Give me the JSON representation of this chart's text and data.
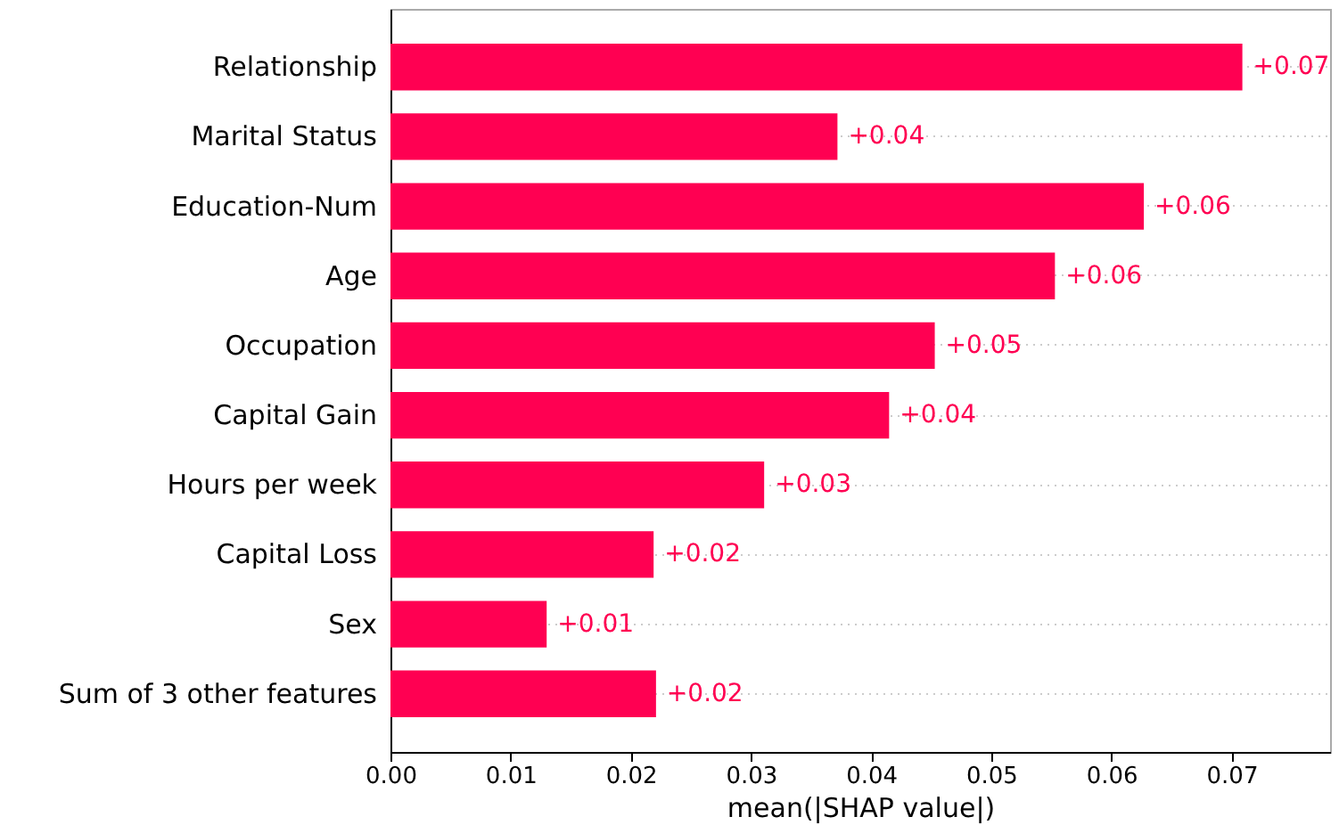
{
  "chart_data": {
    "type": "bar",
    "orientation": "horizontal",
    "xlabel": "mean(|SHAP value|)",
    "categories": [
      "Relationship",
      "Marital Status",
      "Education-Num",
      "Age",
      "Occupation",
      "Capital Gain",
      "Hours per week",
      "Capital Loss",
      "Sex",
      "Sum of 3 other features"
    ],
    "values": [
      0.0709,
      0.0372,
      0.0627,
      0.0553,
      0.0453,
      0.0415,
      0.0311,
      0.0219,
      0.013,
      0.0221
    ],
    "value_labels": [
      "+0.07",
      "+0.04",
      "+0.06",
      "+0.06",
      "+0.05",
      "+0.04",
      "+0.03",
      "+0.02",
      "+0.01",
      "+0.02"
    ],
    "color": "#ff0052",
    "xlim": [
      0,
      0.0782
    ],
    "xticks": [
      {
        "value": 0,
        "label": "0.00"
      },
      {
        "value": 0.01,
        "label": "0.01"
      },
      {
        "value": 0.02,
        "label": "0.02"
      },
      {
        "value": 0.03,
        "label": "0.03"
      },
      {
        "value": 0.04,
        "label": "0.04"
      },
      {
        "value": 0.05,
        "label": "0.05"
      },
      {
        "value": 0.06,
        "label": "0.06"
      },
      {
        "value": 0.07,
        "label": "0.07"
      }
    ],
    "grid": "y"
  }
}
